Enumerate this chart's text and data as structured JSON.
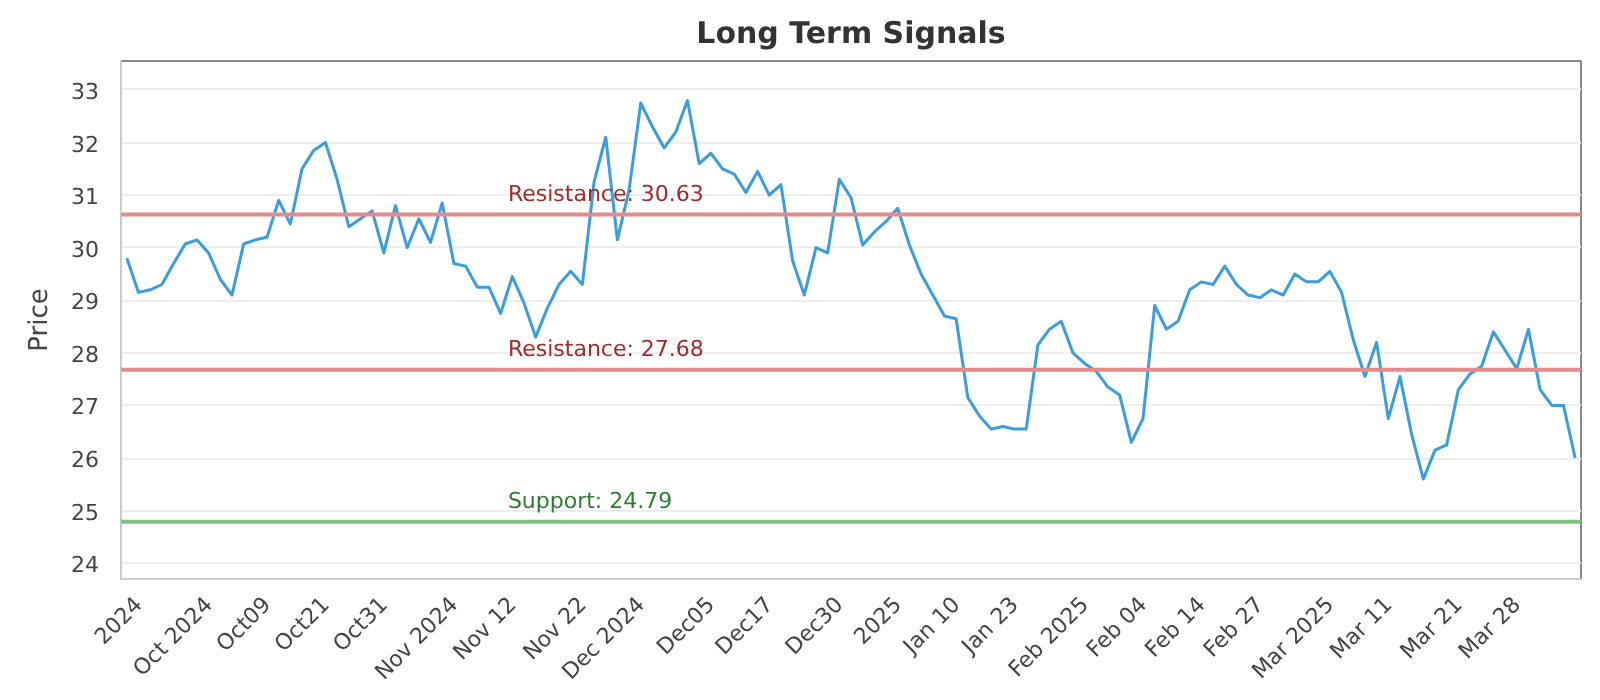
{
  "chart_data": {
    "type": "line",
    "title": "Long Term Signals",
    "ylabel": "Price",
    "categories": [
      null,
      "2024",
      null,
      null,
      null,
      null,
      null,
      "Oct 2024",
      null,
      null,
      null,
      null,
      "Oct09",
      null,
      null,
      null,
      null,
      "Oct21",
      null,
      null,
      null,
      null,
      "Oct31",
      null,
      null,
      null,
      null,
      null,
      "Nov 2024",
      null,
      null,
      null,
      null,
      "Nov 12",
      null,
      null,
      null,
      null,
      null,
      "Nov 22",
      null,
      null,
      null,
      null,
      "Dec 2024",
      null,
      null,
      null,
      null,
      null,
      "Dec05",
      null,
      null,
      null,
      null,
      "Dec17",
      null,
      null,
      null,
      null,
      null,
      "Dec30",
      null,
      null,
      null,
      null,
      "2025",
      null,
      null,
      null,
      null,
      "Jan 10",
      null,
      null,
      null,
      null,
      "Jan 23",
      null,
      null,
      null,
      null,
      null,
      "Feb 2025",
      null,
      null,
      null,
      null,
      "Feb 04",
      null,
      null,
      null,
      null,
      "Feb 14",
      null,
      null,
      null,
      null,
      "Feb 27",
      null,
      null,
      null,
      null,
      null,
      "Mar 2025",
      null,
      null,
      null,
      null,
      "Mar 11",
      null,
      null,
      null,
      null,
      null,
      "Mar 21",
      null,
      null,
      null,
      null,
      "Mar 28",
      null,
      null,
      null,
      null,
      null
    ],
    "series": [
      {
        "color": "#3a9de0",
        "values": [
          29.8,
          29.15,
          29.2,
          29.3,
          29.7,
          30.07,
          30.15,
          29.9,
          29.4,
          29.1,
          30.07,
          30.15,
          30.2,
          30.9,
          30.45,
          31.5,
          31.85,
          32.0,
          31.3,
          30.4,
          30.55,
          30.7,
          29.9,
          30.8,
          30.0,
          30.55,
          30.1,
          30.85,
          29.7,
          29.65,
          29.25,
          29.25,
          28.75,
          29.45,
          28.95,
          28.3,
          28.85,
          29.3,
          29.55,
          29.3,
          31.25,
          32.1,
          30.15,
          31.1,
          32.75,
          32.3,
          31.9,
          32.2,
          32.8,
          31.6,
          31.8,
          31.5,
          31.4,
          31.05,
          31.45,
          31.0,
          31.2,
          29.75,
          29.1,
          30.0,
          29.9,
          31.3,
          30.95,
          30.05,
          30.3,
          30.5,
          30.75,
          30.05,
          29.5,
          29.1,
          28.7,
          28.65,
          27.15,
          26.8,
          26.55,
          26.6,
          26.55,
          26.55,
          28.15,
          28.45,
          28.6,
          28.0,
          27.8,
          27.65,
          27.35,
          27.2,
          26.3,
          26.75,
          28.9,
          28.45,
          28.6,
          29.2,
          29.35,
          29.3,
          29.65,
          29.3,
          29.1,
          29.05,
          29.2,
          29.1,
          29.5,
          29.35,
          29.35,
          29.55,
          29.15,
          28.25,
          27.55,
          28.2,
          26.75,
          27.55,
          26.45,
          25.6,
          26.15,
          26.25,
          27.3,
          27.6,
          27.75,
          28.4,
          28.05,
          27.7,
          28.45,
          27.3,
          27.0,
          27.0,
          26.0
        ]
      }
    ],
    "ylim": [
      23.7,
      33.55
    ],
    "yticks": [
      24,
      25,
      26,
      27,
      28,
      29,
      30,
      31,
      32,
      33
    ],
    "grid": "y",
    "marker": "none",
    "line_style": "solid",
    "ref_lines": [
      {
        "axis": "y",
        "value": 30.63,
        "label": "Resistance: 30.63",
        "color": "#e88a8a"
      },
      {
        "axis": "y",
        "value": 27.68,
        "label": "Resistance: 27.68",
        "color": "#e88a8a"
      },
      {
        "axis": "y",
        "value": 24.79,
        "label": "Support: 24.79",
        "color": "#7cc47c"
      }
    ]
  }
}
